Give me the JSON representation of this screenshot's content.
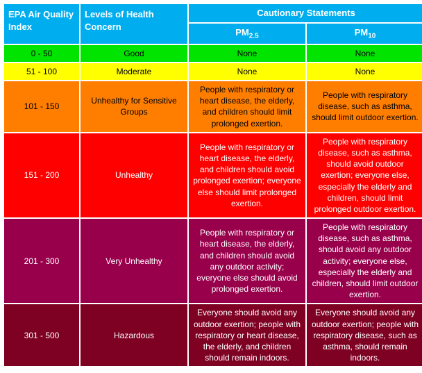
{
  "headers": {
    "aqi": "EPA Air Quality Index",
    "health": "Levels of Health Concern",
    "cautionary": "Cautionary Statements",
    "pm25_prefix": "PM",
    "pm25_sub": "2.5",
    "pm10_prefix": "PM",
    "pm10_sub": "10"
  },
  "header_bg": "#00aeef",
  "header_text_color": "#ffffff",
  "rows": [
    {
      "aqi": "0 - 50",
      "level": "Good",
      "pm25": "None",
      "pm10": "None",
      "bg": "#00e400",
      "text": "#000000"
    },
    {
      "aqi": "51 - 100",
      "level": "Moderate",
      "pm25": "None",
      "pm10": "None",
      "bg": "#ffff00",
      "text": "#000000"
    },
    {
      "aqi": "101 - 150",
      "level": "Unhealthy for Sensitive Groups",
      "pm25": "People with respiratory or heart disease, the elderly, and children should limit prolonged exertion.",
      "pm10": "People with respiratory disease, such as asthma, should limit outdoor exertion.",
      "bg": "#ff7e00",
      "text": "#000000"
    },
    {
      "aqi": "151 - 200",
      "level": "Unhealthy",
      "pm25": "People with respiratory or heart disease, the elderly, and children should avoid prolonged exertion; everyone else should limit prolonged exertion.",
      "pm10": "People with respiratory disease, such as asthma, should avoid outdoor exertion; everyone else, especially the elderly and children, should limit prolonged outdoor exertion.",
      "bg": "#ff0000",
      "text": "#ffffff"
    },
    {
      "aqi": "201 - 300",
      "level": "Very Unhealthy",
      "pm25": "People with respiratory or heart disease, the elderly, and children should avoid any outdoor activity; everyone else should avoid prolonged exertion.",
      "pm10": "People with respiratory disease, such as asthma, should avoid any outdoor activity; everyone else, especially the elderly and children, should limit outdoor exertion.",
      "bg": "#99004c",
      "text": "#ffffff"
    },
    {
      "aqi": "301 - 500",
      "level": "Hazardous",
      "pm25": "Everyone should avoid any outdoor exertion; people with respiratory or heart disease, the elderly, and children should remain indoors.",
      "pm10": "Everyone should avoid any outdoor exertion; people with respiratory disease, such as asthma, should remain indoors.",
      "bg": "#7e0023",
      "text": "#ffffff"
    }
  ]
}
